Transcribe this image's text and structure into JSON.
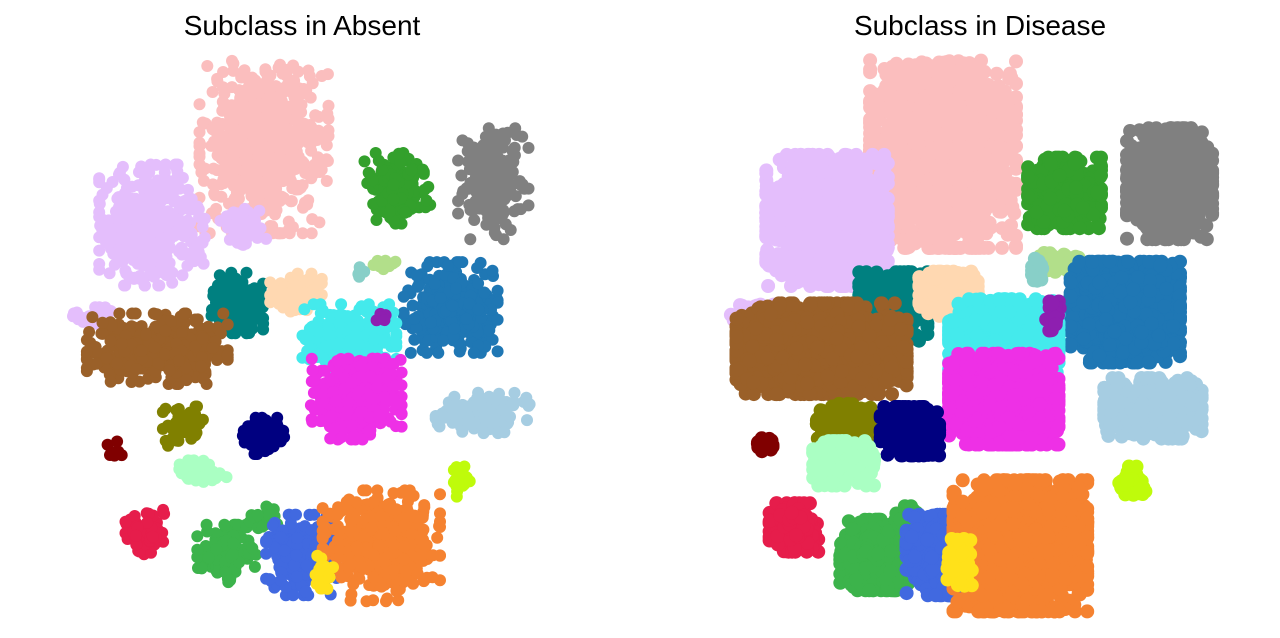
{
  "chart_data": [
    {
      "type": "scatter",
      "title": "Subclass in Absent",
      "xlabel": "",
      "ylabel": "",
      "grid": false,
      "axes_visible": false,
      "clusters": [
        {
          "color": "#FBBEBE",
          "x": 0.37,
          "y": 0.82,
          "sx": 0.055,
          "sy": 0.09,
          "n": 700
        },
        {
          "color": "#E4BEFC",
          "x": 0.16,
          "y": 0.64,
          "sx": 0.045,
          "sy": 0.06,
          "n": 420
        },
        {
          "color": "#E4BEFC",
          "x": 0.33,
          "y": 0.64,
          "sx": 0.02,
          "sy": 0.02,
          "n": 70
        },
        {
          "color": "#E4BEFC",
          "x": 0.05,
          "y": 0.44,
          "sx": 0.02,
          "sy": 0.012,
          "n": 40
        },
        {
          "color": "#33A02C",
          "x": 0.62,
          "y": 0.72,
          "sx": 0.028,
          "sy": 0.035,
          "n": 160
        },
        {
          "color": "#808080",
          "x": 0.8,
          "y": 0.73,
          "sx": 0.03,
          "sy": 0.055,
          "n": 200
        },
        {
          "color": "#B2DF8A",
          "x": 0.59,
          "y": 0.56,
          "sx": 0.012,
          "sy": 0.008,
          "n": 12
        },
        {
          "color": "#88CFC8",
          "x": 0.55,
          "y": 0.54,
          "sx": 0.006,
          "sy": 0.006,
          "n": 5
        },
        {
          "color": "#1F77B4",
          "x": 0.72,
          "y": 0.46,
          "sx": 0.04,
          "sy": 0.045,
          "n": 320
        },
        {
          "color": "#008080",
          "x": 0.32,
          "y": 0.47,
          "sx": 0.022,
          "sy": 0.03,
          "n": 170
        },
        {
          "color": "#FFD8B1",
          "x": 0.43,
          "y": 0.49,
          "sx": 0.022,
          "sy": 0.02,
          "n": 110
        },
        {
          "color": "#9A6029",
          "x": 0.17,
          "y": 0.37,
          "sx": 0.06,
          "sy": 0.035,
          "n": 420
        },
        {
          "color": "#44EAEC",
          "x": 0.53,
          "y": 0.39,
          "sx": 0.04,
          "sy": 0.035,
          "n": 280
        },
        {
          "color": "#8E1FB0",
          "x": 0.59,
          "y": 0.44,
          "sx": 0.004,
          "sy": 0.008,
          "n": 5
        },
        {
          "color": "#EE30E6",
          "x": 0.54,
          "y": 0.26,
          "sx": 0.04,
          "sy": 0.04,
          "n": 420
        },
        {
          "color": "#A6CDE2",
          "x": 0.78,
          "y": 0.23,
          "sx": 0.04,
          "sy": 0.02,
          "n": 150
        },
        {
          "color": "#808000",
          "x": 0.22,
          "y": 0.2,
          "sx": 0.018,
          "sy": 0.02,
          "n": 70
        },
        {
          "color": "#000080",
          "x": 0.37,
          "y": 0.18,
          "sx": 0.018,
          "sy": 0.018,
          "n": 90
        },
        {
          "color": "#800000",
          "x": 0.09,
          "y": 0.15,
          "sx": 0.006,
          "sy": 0.008,
          "n": 7
        },
        {
          "color": "#AAFFC3",
          "x": 0.25,
          "y": 0.1,
          "sx": 0.025,
          "sy": 0.012,
          "n": 60
        },
        {
          "color": "#BFFB0B",
          "x": 0.74,
          "y": 0.08,
          "sx": 0.01,
          "sy": 0.015,
          "n": 30
        },
        {
          "color": "#E61D4B",
          "x": 0.15,
          "y": -0.03,
          "sx": 0.018,
          "sy": 0.022,
          "n": 80
        },
        {
          "color": "#3CB34B",
          "x": 0.3,
          "y": -0.08,
          "sx": 0.025,
          "sy": 0.03,
          "n": 120
        },
        {
          "color": "#3CB34B",
          "x": 0.37,
          "y": 0.0,
          "sx": 0.012,
          "sy": 0.012,
          "n": 25
        },
        {
          "color": "#4169E0",
          "x": 0.44,
          "y": -0.08,
          "sx": 0.03,
          "sy": 0.04,
          "n": 220
        },
        {
          "color": "#F58230",
          "x": 0.59,
          "y": -0.06,
          "sx": 0.05,
          "sy": 0.055,
          "n": 420
        },
        {
          "color": "#FFE11A",
          "x": 0.48,
          "y": -0.11,
          "sx": 0.01,
          "sy": 0.02,
          "n": 25
        }
      ]
    },
    {
      "type": "scatter",
      "title": "Subclass in Disease",
      "xlabel": "",
      "ylabel": "",
      "grid": false,
      "axes_visible": false,
      "clusters": [
        {
          "color": "#FBBEBE",
          "x": 0.39,
          "y": 0.81,
          "sx": 0.06,
          "sy": 0.1,
          "n": 2200
        },
        {
          "color": "#E4BEFC",
          "x": 0.18,
          "y": 0.65,
          "sx": 0.05,
          "sy": 0.065,
          "n": 1400
        },
        {
          "color": "#E4BEFC",
          "x": 0.05,
          "y": 0.44,
          "sx": 0.02,
          "sy": 0.012,
          "n": 120
        },
        {
          "color": "#33A02C",
          "x": 0.61,
          "y": 0.71,
          "sx": 0.03,
          "sy": 0.035,
          "n": 600
        },
        {
          "color": "#808080",
          "x": 0.8,
          "y": 0.73,
          "sx": 0.035,
          "sy": 0.055,
          "n": 1100
        },
        {
          "color": "#B2DF8A",
          "x": 0.6,
          "y": 0.56,
          "sx": 0.016,
          "sy": 0.01,
          "n": 60
        },
        {
          "color": "#88CFC8",
          "x": 0.56,
          "y": 0.54,
          "sx": 0.006,
          "sy": 0.012,
          "n": 20
        },
        {
          "color": "#1F77B4",
          "x": 0.72,
          "y": 0.45,
          "sx": 0.045,
          "sy": 0.05,
          "n": 1500
        },
        {
          "color": "#008080",
          "x": 0.3,
          "y": 0.46,
          "sx": 0.028,
          "sy": 0.035,
          "n": 700
        },
        {
          "color": "#FFD8B1",
          "x": 0.4,
          "y": 0.49,
          "sx": 0.024,
          "sy": 0.022,
          "n": 400
        },
        {
          "color": "#9A6029",
          "x": 0.17,
          "y": 0.37,
          "sx": 0.07,
          "sy": 0.045,
          "n": 1800
        },
        {
          "color": "#44EAEC",
          "x": 0.5,
          "y": 0.39,
          "sx": 0.045,
          "sy": 0.04,
          "n": 1200
        },
        {
          "color": "#8E1FB0",
          "x": 0.59,
          "y": 0.44,
          "sx": 0.006,
          "sy": 0.015,
          "n": 25
        },
        {
          "color": "#EE30E6",
          "x": 0.5,
          "y": 0.26,
          "sx": 0.045,
          "sy": 0.045,
          "n": 1600
        },
        {
          "color": "#A6CDE2",
          "x": 0.77,
          "y": 0.24,
          "sx": 0.04,
          "sy": 0.03,
          "n": 700
        },
        {
          "color": "#808000",
          "x": 0.21,
          "y": 0.21,
          "sx": 0.022,
          "sy": 0.018,
          "n": 300
        },
        {
          "color": "#000080",
          "x": 0.33,
          "y": 0.19,
          "sx": 0.024,
          "sy": 0.024,
          "n": 500
        },
        {
          "color": "#800000",
          "x": 0.07,
          "y": 0.16,
          "sx": 0.008,
          "sy": 0.008,
          "n": 30
        },
        {
          "color": "#AAFFC3",
          "x": 0.21,
          "y": 0.12,
          "sx": 0.025,
          "sy": 0.022,
          "n": 350
        },
        {
          "color": "#BFFB0B",
          "x": 0.73,
          "y": 0.08,
          "sx": 0.012,
          "sy": 0.015,
          "n": 100
        },
        {
          "color": "#E61D4B",
          "x": 0.12,
          "y": -0.02,
          "sx": 0.02,
          "sy": 0.024,
          "n": 300
        },
        {
          "color": "#3CB34B",
          "x": 0.27,
          "y": -0.08,
          "sx": 0.03,
          "sy": 0.035,
          "n": 600
        },
        {
          "color": "#3CB34B",
          "x": 0.33,
          "y": 0.0,
          "sx": 0.012,
          "sy": 0.012,
          "n": 60
        },
        {
          "color": "#4169E0",
          "x": 0.39,
          "y": -0.08,
          "sx": 0.03,
          "sy": 0.04,
          "n": 600
        },
        {
          "color": "#F58230",
          "x": 0.53,
          "y": -0.06,
          "sx": 0.055,
          "sy": 0.065,
          "n": 2000
        },
        {
          "color": "#FFE11A",
          "x": 0.42,
          "y": -0.1,
          "sx": 0.01,
          "sy": 0.025,
          "n": 100
        }
      ]
    }
  ]
}
